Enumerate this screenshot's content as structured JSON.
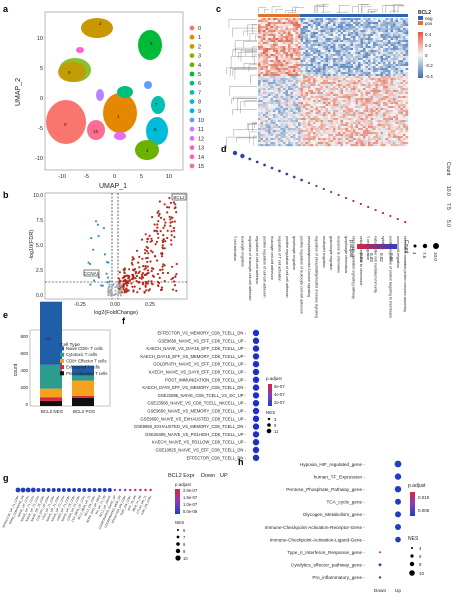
{
  "panels": {
    "a": {
      "letter": "a",
      "xlabel": "UMAP_1",
      "ylabel": "UMAP_2",
      "xticks": [
        "-10",
        "-5",
        "0",
        "5",
        "10"
      ],
      "yticks": [
        "10",
        "5",
        "0",
        "-5",
        "-10"
      ],
      "clusters": [
        {
          "id": "0",
          "color": "#f8766d"
        },
        {
          "id": "1",
          "color": "#e58700"
        },
        {
          "id": "2",
          "color": "#c99800"
        },
        {
          "id": "3",
          "color": "#a3a500"
        },
        {
          "id": "4",
          "color": "#6bb100"
        },
        {
          "id": "5",
          "color": "#00ba38"
        },
        {
          "id": "6",
          "color": "#00bf7d"
        },
        {
          "id": "7",
          "color": "#00c0af"
        },
        {
          "id": "8",
          "color": "#00bcd8"
        },
        {
          "id": "9",
          "color": "#00b0f6"
        },
        {
          "id": "10",
          "color": "#619cff"
        },
        {
          "id": "11",
          "color": "#b983ff"
        },
        {
          "id": "12",
          "color": "#e76bf3"
        },
        {
          "id": "13",
          "color": "#fd61d1"
        },
        {
          "id": "14",
          "color": "#ff67a4"
        },
        {
          "id": "15",
          "color": "#ff6c91"
        }
      ]
    },
    "b": {
      "letter": "b",
      "xlabel": "log2(FoldChange)",
      "ylabel": "-log10(FDR)",
      "xticks": [
        "-0.25",
        "0.00",
        "0.25"
      ],
      "yticks": [
        "10.0",
        "7.5",
        "5.0",
        "2.5",
        "0.0"
      ],
      "gene_up": "BCL2",
      "gene_down": "CCNA1"
    },
    "c": {
      "letter": "c",
      "legend_title": "BCL2",
      "legend_items": [
        "neg",
        "pos"
      ],
      "scale_ticks": [
        "0.4",
        "0.2",
        "0",
        "-0.2",
        "-0.4"
      ]
    },
    "d": {
      "letter": "d",
      "count_label": "Count",
      "count_ticks": [
        "5.0",
        "7.5",
        "10.0"
      ],
      "padj_label": "p.adjust",
      "padj_ticks": [
        "0.04",
        "0.03",
        "0.02",
        "0.01"
      ],
      "count_legend_label": "Count",
      "count_legend": [
        "4",
        "7.5",
        "10.0"
      ],
      "terms": [
        "T cell activation",
        "leukocyte migration",
        "regulation of leukocyte cell-cell adhesion",
        "regulation of cell-cell adhesion",
        "positive regulation of cell-cell adhesion",
        "leukocyte cell-cell adhesion",
        "regulation of T cell activation",
        "positive regulation of cell-cell adhesion",
        "lymphocyte migration",
        "positive regulation of leukocyte cell-cell adhesion",
        "phosphatidylinositol 3-kinase signaling",
        "regulation of phosphatidylinositol 3-kinase signaling",
        "neutrophil migration",
        "granulocyte migration",
        "response to chemokine",
        "lymphocyte chemotaxis",
        "chemokine-mediated signaling pathway",
        "cellular response to chemokine",
        "T cell migration",
        "natural killer cell mediated immunity",
        "cytolysis",
        "positive regulation of protein targeting to membrane",
        "eosinophil migration",
        "chemokine-mediated protein complex assembly"
      ]
    },
    "e": {
      "letter": "e",
      "ylabel": "count",
      "yticks": [
        "800",
        "600",
        "400",
        "200",
        "0"
      ],
      "legend_title": "Cell Type",
      "legend": [
        {
          "label": "Naive CD8+ T cells",
          "color": "#1f5fa8"
        },
        {
          "label": "Cytotoxic T cells",
          "color": "#2a9d8f"
        },
        {
          "label": "CD8+ Effector T cells",
          "color": "#f4a21c"
        },
        {
          "label": "Exhausted T cells",
          "color": "#d7263d"
        },
        {
          "label": "Pre-exhausted T cells",
          "color": "#111111"
        }
      ],
      "categories": [
        "BCL2 NEG",
        "BCL2 POS"
      ],
      "top_label": "742",
      "chart_data": {
        "type": "bar",
        "categories": [
          "BCL2 NEG",
          "BCL2 POS"
        ],
        "series": [
          {
            "name": "Naive CD8+ T cells",
            "values": [
              742,
              120
            ]
          },
          {
            "name": "Cytotoxic T cells",
            "values": [
              280,
              55
            ]
          },
          {
            "name": "CD8+ Effector T cells",
            "values": [
              105,
              180
            ]
          },
          {
            "name": "Exhausted T cells",
            "values": [
              40,
              25
            ]
          },
          {
            "name": "Pre-exhausted T cells",
            "values": [
              60,
              95
            ]
          }
        ],
        "ylim": [
          0,
          800
        ]
      }
    },
    "f": {
      "letter": "f",
      "terms": [
        {
          "label": "EFFECTOR_VS_MEMORY_CD8_TCELL_DN",
          "red": false
        },
        {
          "label": "GSE9650_NAIVE_VS_EFF_CD8_TCELL_UP",
          "red": false
        },
        {
          "label": "KAECH_NAIVE_VS_DAY15_EFF_CD8_TCELL_UP",
          "red": false
        },
        {
          "label": "KAECH_DAY15_EFF_VS_MEMORY_CD8_TCELL_UP",
          "red": false
        },
        {
          "label": "GOLDRATH_NAIVE_VS_EFF_CD8_TCELL_UP",
          "red": false
        },
        {
          "label": "KAECH_NAIVE_VS_DAY8_EFF_CD8_TCELL_UP",
          "red": false
        },
        {
          "label": "POST_IMMUNIZATION_CD8_TCELL_UP",
          "red": false
        },
        {
          "label": "KAECH_DAY8_EFF_VS_MEMORY_CD8_TCELL_DN",
          "red": false
        },
        {
          "label": "GSE22886_NAIVE_CD8_TCELL_VS_DC_UP",
          "red": false
        },
        {
          "label": "GSE23568_NAIVE_VS_CD8_TCELL_NKCELL_UP",
          "red": false
        },
        {
          "label": "GSE9650_NAIVE_VS_MEMORY_CD8_TCELL_UP",
          "red": false
        },
        {
          "label": "GSE9650_NAIVE_VS_EXHAUSTED_CD8_TCELL_UP",
          "red": true
        },
        {
          "label": "GSE9650_EXHAUSTED_VS_MEMORY_CD8_TCELL_DN",
          "red": true
        },
        {
          "label": "GSE26495_NAIVE_VS_PD1HIGH_CD8_TCELL_UP",
          "red": false
        },
        {
          "label": "KAECH_NAIVE_VS_PD1LOW_CD8_TCELL_UP",
          "red": false
        },
        {
          "label": "GSE10825_NAIVE_VS_EFF_CD8_TCELL_DN",
          "red": false
        },
        {
          "label": "EFFECTOR_CD8_TCELL_DN",
          "red": false
        }
      ],
      "padj_label": "p.adjust",
      "padj_ticks": [
        "6e-07",
        "4e-07",
        "2e-07"
      ],
      "nes_label": "NES",
      "nes_ticks": [
        "3",
        "9",
        "11"
      ]
    },
    "g": {
      "letter": "g",
      "legend_title": "BCL2 Expr",
      "legend_down": "Down",
      "legend_up": "UP",
      "padj_label": "p.adjust",
      "padj_ticks": [
        "2.0e-07",
        "1.5e-07",
        "1.0e-07",
        "5.0e-08"
      ],
      "nes_label": "NES",
      "nes_ticks": [
        "6",
        "7",
        "8",
        "9",
        "10"
      ],
      "terms": [
        "EFFECTOR_UP_T1_CD8+",
        "TERM_CD8+NAIVE_DN",
        "NAIVE_UP_CD4+",
        "NAIVE_UP_T1_CD4+",
        "NAIVE_UP_T3_CD4+",
        "NAIVE_DN_T8_CD8+",
        "CD8_EFF_UP_CD8+",
        "LTD2_UP_T1_CD8+",
        "NAIVE_UP_T4_CD8+",
        "NAIVE_UP_T2_CD4+",
        "GSE5_UP_T1_CD8+",
        "NAIVE_UP_T8_CD8+",
        "GSE8_UP_T0_CD8+",
        "CD4_MEM_UP_CD4+",
        "BCL2_MEM_UP_T1",
        "BCL2_DN_CD8+",
        "BOSP_SHD_UP_MEM",
        "RA_UP_T4_DN",
        "BCL2_UP_NAIVE",
        "COORDINATED_NAIVE_UP",
        "COORDINATED_MEM_DN",
        "EFFECTOR_DN_CD8+",
        "TEFF_DN_CD8+",
        "EFF_T8_DN",
        "MEM_T4_DN",
        "CTLA4_DN_T1",
        "EXH_DN_CD8+"
      ]
    },
    "h": {
      "letter": "h",
      "xticks": [
        "Down",
        "Up"
      ],
      "padj_label": "p.adjust",
      "padj_ticks": [
        "0.010",
        "0.005"
      ],
      "nes_label": "NES",
      "nes_ticks": [
        "4",
        "6",
        "8",
        "10"
      ],
      "terms": [
        "Hypoxia_HIF_regulated_gene",
        "human_TF_Expression",
        "Pentose_Phosphate_Pathway_gene",
        "TCA_cycle_gene",
        "Glycogen_Metabolism_gene",
        "Immune-Checkpoint-Activation-Receptor-Gene",
        "Immune-Checkpoint-Activation-Ligand-Gene",
        "Type_II_Interferon_Response_gene",
        "Cytolytics_effector_pathway_gene",
        "Pro_inflammatory_gene"
      ]
    }
  }
}
